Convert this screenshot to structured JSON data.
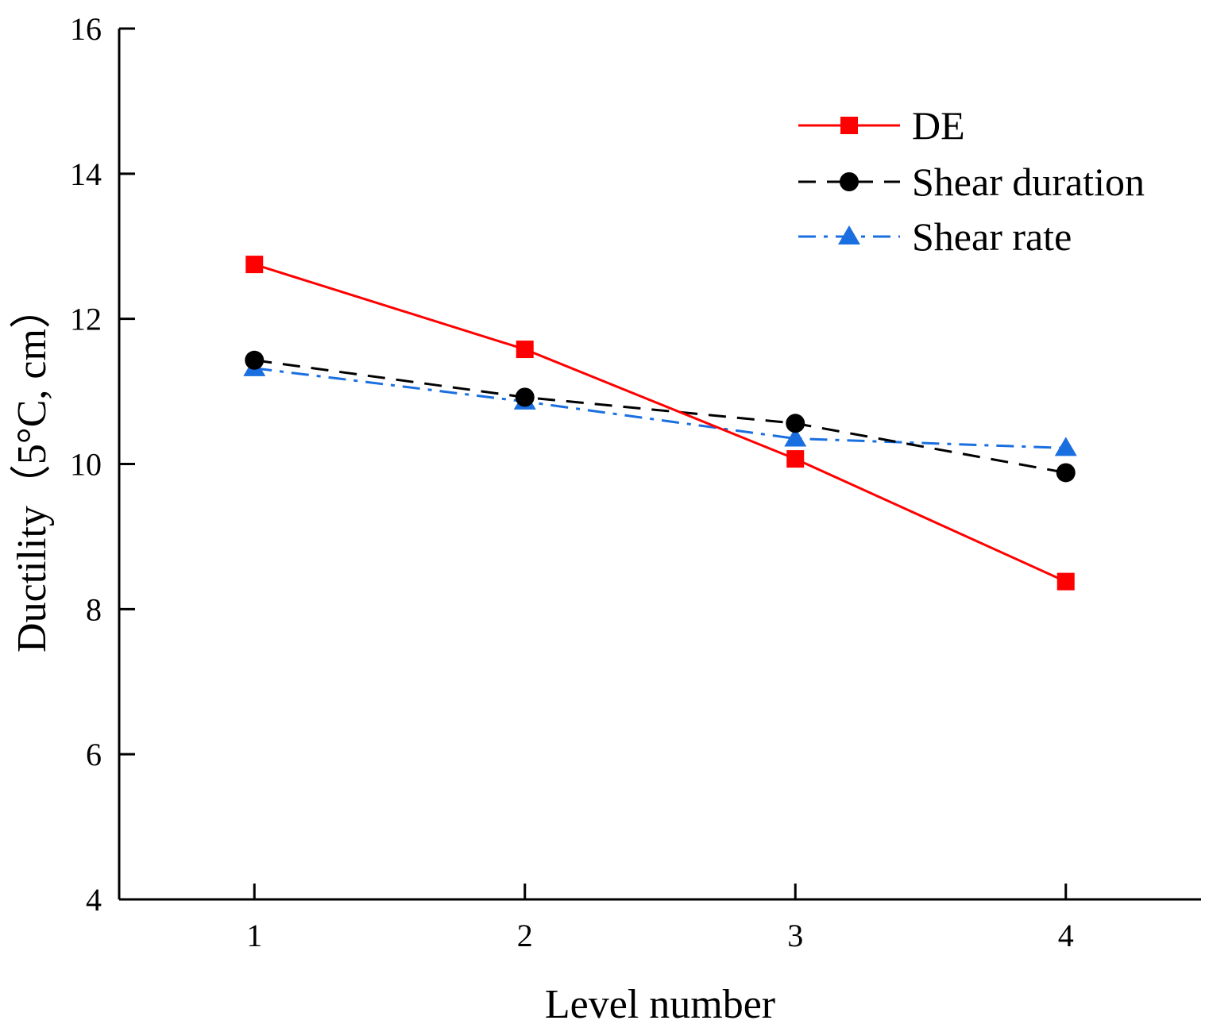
{
  "chart_data": {
    "type": "line",
    "title": "",
    "xlabel": "Level number",
    "ylabel": "Ductility（5°C, cm）",
    "x": [
      1,
      2,
      3,
      4
    ],
    "xlim": [
      0.5,
      4.5
    ],
    "ylim": [
      4,
      16
    ],
    "xticks": [
      "1",
      "2",
      "3",
      "4"
    ],
    "yticks": [
      "4",
      "6",
      "8",
      "10",
      "12",
      "14",
      "16"
    ],
    "grid": false,
    "legend_position": "top-right",
    "series": [
      {
        "name": "DE",
        "values": [
          12.75,
          11.58,
          10.07,
          8.38
        ],
        "color": "#ff0000",
        "marker": "square",
        "line_style": "solid"
      },
      {
        "name": "Shear duration",
        "values": [
          11.43,
          10.92,
          10.56,
          9.88
        ],
        "color": "#000000",
        "marker": "circle",
        "line_style": "dashed"
      },
      {
        "name": "Shear rate",
        "values": [
          11.32,
          10.86,
          10.35,
          10.22
        ],
        "color": "#1a6fe0",
        "marker": "triangle",
        "line_style": "dash-dot"
      }
    ]
  }
}
